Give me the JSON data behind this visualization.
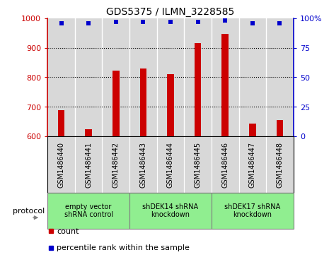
{
  "title": "GDS5375 / ILMN_3228585",
  "samples": [
    "GSM1486440",
    "GSM1486441",
    "GSM1486442",
    "GSM1486443",
    "GSM1486444",
    "GSM1486445",
    "GSM1486446",
    "GSM1486447",
    "GSM1486448"
  ],
  "counts": [
    688,
    624,
    822,
    830,
    810,
    915,
    948,
    642,
    655
  ],
  "percentile_ranks": [
    96,
    96,
    97,
    97,
    97,
    97,
    98,
    96,
    96
  ],
  "groups": [
    {
      "label": "empty vector\nshRNA control",
      "start": 0,
      "end": 3
    },
    {
      "label": "shDEK14 shRNA\nknockdown",
      "start": 3,
      "end": 6
    },
    {
      "label": "shDEK17 shRNA\nknockdown",
      "start": 6,
      "end": 9
    }
  ],
  "ylim_left": [
    600,
    1000
  ],
  "ylim_right": [
    0,
    100
  ],
  "yticks_left": [
    600,
    700,
    800,
    900,
    1000
  ],
  "ytick_labels_left": [
    "600",
    "700",
    "800",
    "900",
    "1000"
  ],
  "yticks_right": [
    0,
    25,
    50,
    75,
    100
  ],
  "ytick_labels_right": [
    "0",
    "25",
    "50",
    "75",
    "100%"
  ],
  "bar_color": "#cc0000",
  "dot_color": "#0000cc",
  "bar_width": 0.25,
  "cell_bg_color": "#d8d8d8",
  "group_bg_color": "#90ee90",
  "grid_color": "black",
  "left_axis_color": "#cc0000",
  "right_axis_color": "#0000cc",
  "legend_items": [
    {
      "color": "#cc0000",
      "label": "count"
    },
    {
      "color": "#0000cc",
      "label": "percentile rank within the sample"
    }
  ],
  "protocol_label": "protocol",
  "n_samples": 9
}
